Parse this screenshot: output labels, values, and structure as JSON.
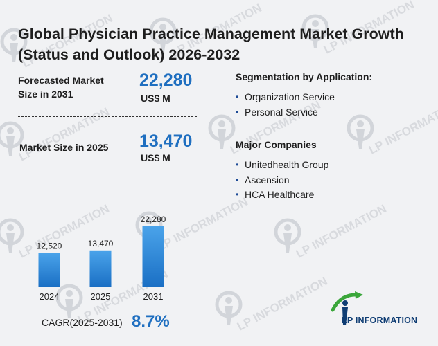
{
  "title": "Global Physician Practice Management Market Growth (Status and Outlook) 2026-2032",
  "forecast": {
    "label": "Forecasted Market Size in 2031",
    "value": "22,280",
    "unit": "US$ M"
  },
  "current": {
    "label": "Market Size in 2025",
    "value": "13,470",
    "unit": "US$ M"
  },
  "segmentation": {
    "heading": "Segmentation by Application:",
    "items": [
      "Organization Service",
      "Personal Service"
    ]
  },
  "companies": {
    "heading": "Major Companies",
    "items": [
      "Unitedhealth Group",
      "Ascension",
      "HCA Healthcare"
    ]
  },
  "cagr": {
    "label": "CAGR(2025-2031)",
    "value": "8.7%"
  },
  "watermark_text": "LP INFORMATION",
  "logo": {
    "text": "LP INFORMATION"
  },
  "colors": {
    "accent": "#1f6fc0",
    "bar_top": "#4aa3ea",
    "bar_bottom": "#1a6fc4",
    "logo_green": "#3aa63a",
    "logo_navy": "#0f3d73"
  },
  "chart_data": {
    "type": "bar",
    "categories": [
      "2024",
      "2025",
      "2031"
    ],
    "values": [
      12520,
      13470,
      22280
    ],
    "value_labels": [
      "12,520",
      "13,470",
      "22,280"
    ],
    "title": "",
    "xlabel": "",
    "ylabel": ""
  }
}
